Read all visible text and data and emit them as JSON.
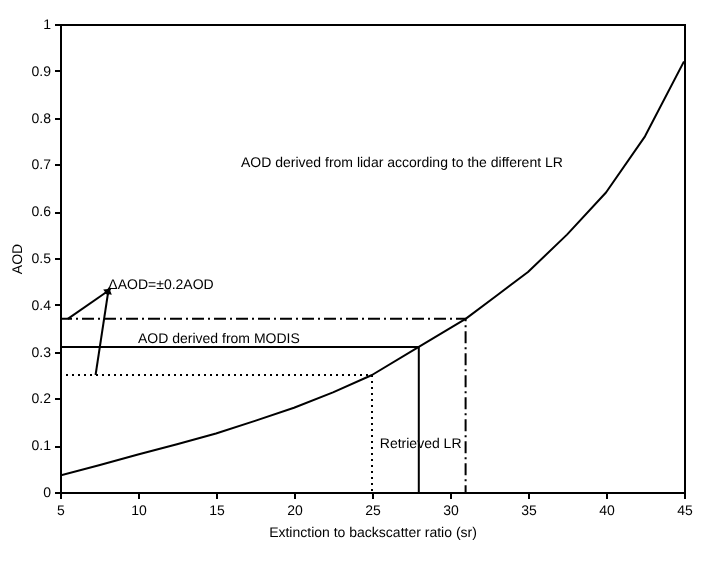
{
  "chart_data": {
    "type": "line",
    "xlabel": "Extinction to backscatter ratio (sr)",
    "ylabel": "AOD",
    "xlim": [
      5,
      45
    ],
    "ylim": [
      0,
      1
    ],
    "xticks": [
      5,
      10,
      15,
      20,
      25,
      30,
      35,
      40,
      45
    ],
    "yticks": [
      0,
      0.1,
      0.2,
      0.3,
      0.4,
      0.5,
      0.6,
      0.7,
      0.8,
      0.9,
      1
    ],
    "grid": false,
    "marker": "none",
    "series": [
      {
        "color": "#000000",
        "line_style": "solid",
        "x": [
          5,
          7.5,
          10,
          12.5,
          15,
          17.5,
          20,
          22.5,
          25,
          28,
          31,
          33,
          35,
          37.5,
          40,
          42.5,
          45
        ],
        "values": [
          0.035,
          0.057,
          0.08,
          0.102,
          0.125,
          0.152,
          0.18,
          0.213,
          0.25,
          0.31,
          0.37,
          0.42,
          0.47,
          0.55,
          0.64,
          0.76,
          0.92
        ]
      },
      {
        "color": "#000000",
        "line_style": "solid",
        "x": [
          5,
          28,
          28
        ],
        "values": [
          0.31,
          0.31,
          0
        ]
      },
      {
        "color": "#000000",
        "line_style": "dashed",
        "x": [
          5,
          31,
          31
        ],
        "values": [
          0.37,
          0.37,
          0
        ]
      },
      {
        "color": "#000000",
        "line_style": "dotted",
        "x": [
          5,
          25,
          25
        ],
        "values": [
          0.25,
          0.25,
          0
        ]
      }
    ],
    "annotations": [
      "AOD derived from lidar according to the different LR",
      {
        "text": "ΔAOD=±0.2AOD",
        "x": 5.5,
        "y": 0.37
      },
      {
        "text": "AOD derived from MODIS",
        "x": 10,
        "y": 0.315
      },
      {
        "text": "Retrieved LR",
        "x": 25.5,
        "y": 0.09
      }
    ]
  }
}
